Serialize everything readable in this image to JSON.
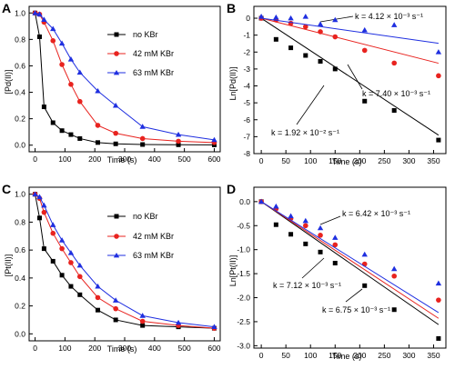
{
  "chart_data": [
    {
      "type": "line",
      "panel_label": "A",
      "xlabel": "Time (s)",
      "ylabel": "[Pd(II)]",
      "xlim": [
        -20,
        620
      ],
      "ylim": [
        -0.05,
        1.05
      ],
      "xticks": [
        0,
        100,
        200,
        300,
        400,
        500,
        600
      ],
      "yticks": [
        0.0,
        0.2,
        0.4,
        0.6,
        0.8,
        1.0
      ],
      "ytick_labels": [
        "0.0",
        "0.2",
        "0.4",
        "0.6",
        "0.8",
        "1.0"
      ],
      "legend_position": "top-right",
      "series": [
        {
          "name": "no KBr",
          "color": "#000000",
          "marker": "square",
          "x": [
            0,
            15,
            30,
            60,
            90,
            120,
            150,
            210,
            270,
            360,
            480,
            600
          ],
          "y": [
            1.0,
            0.82,
            0.29,
            0.17,
            0.11,
            0.08,
            0.05,
            0.02,
            0.01,
            0.005,
            0.003,
            0.002
          ]
        },
        {
          "name": "42 mM KBr",
          "color": "#e8231f",
          "marker": "circle",
          "x": [
            0,
            15,
            30,
            60,
            90,
            120,
            150,
            210,
            270,
            360,
            480,
            600
          ],
          "y": [
            1.0,
            0.99,
            0.93,
            0.79,
            0.61,
            0.46,
            0.33,
            0.15,
            0.09,
            0.05,
            0.03,
            0.02
          ]
        },
        {
          "name": "63 mM KBr",
          "color": "#1f2fe0",
          "marker": "triangle",
          "x": [
            0,
            15,
            30,
            60,
            90,
            120,
            150,
            210,
            270,
            360,
            480,
            600
          ],
          "y": [
            1.0,
            0.99,
            0.95,
            0.88,
            0.77,
            0.65,
            0.55,
            0.41,
            0.3,
            0.14,
            0.08,
            0.04
          ]
        }
      ]
    },
    {
      "type": "scatter",
      "panel_label": "B",
      "xlabel": "Time (s)",
      "ylabel": "Ln[Pd(II)]",
      "xlim": [
        -15,
        375
      ],
      "ylim": [
        -8,
        0.7
      ],
      "xticks": [
        0,
        50,
        100,
        150,
        200,
        250,
        300,
        350
      ],
      "yticks": [
        0,
        -1,
        -2,
        -3,
        -4,
        -5,
        -6,
        -7,
        -8
      ],
      "ytick_labels": [
        "0",
        "-1",
        "-2",
        "-3",
        "-4",
        "-5",
        "-6",
        "-7",
        "-8"
      ],
      "series": [
        {
          "name": "no KBr",
          "color": "#000000",
          "marker": "square",
          "x": [
            0,
            30,
            60,
            90,
            120,
            150,
            210,
            270,
            360
          ],
          "y": [
            0.0,
            -1.25,
            -1.75,
            -2.2,
            -2.55,
            -3.0,
            -4.9,
            -5.45,
            -7.2
          ],
          "fit": [
            0.0,
            -6.91
          ]
        },
        {
          "name": "42 mM KBr",
          "color": "#e8231f",
          "marker": "circle",
          "x": [
            0,
            30,
            60,
            90,
            120,
            150,
            210,
            270,
            360
          ],
          "y": [
            0.0,
            -0.1,
            -0.3,
            -0.5,
            -0.8,
            -1.1,
            -1.9,
            -2.65,
            -3.4
          ],
          "fit": [
            0.0,
            -2.66
          ]
        },
        {
          "name": "63 mM KBr",
          "color": "#1f2fe0",
          "marker": "triangle",
          "x": [
            0,
            30,
            60,
            90,
            120,
            150,
            210,
            270,
            360
          ],
          "y": [
            0.1,
            0.05,
            0.0,
            0.1,
            -0.35,
            -0.1,
            -0.7,
            -0.4,
            -2.0
          ],
          "fit": [
            0.0,
            -1.48
          ]
        }
      ],
      "annotations": [
        {
          "text": "k = 4.12 × 10⁻³ s⁻¹"
        },
        {
          "text": "k = 7.40 × 10⁻³ s⁻¹"
        },
        {
          "text": "k = 1.92 × 10⁻² s⁻¹"
        }
      ]
    },
    {
      "type": "line",
      "panel_label": "C",
      "xlabel": "Time (s)",
      "ylabel": "[Pt(II)]",
      "xlim": [
        -20,
        620
      ],
      "ylim": [
        -0.05,
        1.05
      ],
      "xticks": [
        0,
        100,
        200,
        300,
        400,
        500,
        600
      ],
      "yticks": [
        0.0,
        0.2,
        0.4,
        0.6,
        0.8,
        1.0
      ],
      "ytick_labels": [
        "0.0",
        "0.2",
        "0.4",
        "0.6",
        "0.8",
        "1.0"
      ],
      "legend_position": "top-right",
      "series": [
        {
          "name": "no KBr",
          "color": "#000000",
          "marker": "square",
          "x": [
            0,
            15,
            30,
            60,
            90,
            120,
            150,
            210,
            270,
            360,
            480,
            600
          ],
          "y": [
            1.0,
            0.83,
            0.61,
            0.52,
            0.42,
            0.34,
            0.28,
            0.17,
            0.1,
            0.06,
            0.05,
            0.04
          ]
        },
        {
          "name": "42 mM KBr",
          "color": "#e8231f",
          "marker": "circle",
          "x": [
            0,
            15,
            30,
            60,
            90,
            120,
            150,
            210,
            270,
            360,
            480,
            600
          ],
          "y": [
            1.0,
            0.97,
            0.87,
            0.72,
            0.61,
            0.51,
            0.41,
            0.26,
            0.18,
            0.09,
            0.06,
            0.04
          ]
        },
        {
          "name": "63 mM KBr",
          "color": "#1f2fe0",
          "marker": "triangle",
          "x": [
            0,
            15,
            30,
            60,
            90,
            120,
            150,
            210,
            270,
            360,
            480,
            600
          ],
          "y": [
            1.0,
            0.98,
            0.92,
            0.78,
            0.67,
            0.58,
            0.49,
            0.34,
            0.24,
            0.13,
            0.08,
            0.05
          ]
        }
      ]
    },
    {
      "type": "scatter",
      "panel_label": "D",
      "xlabel": "Time (s)",
      "ylabel": "Ln[Pt(II)]",
      "xlim": [
        -15,
        375
      ],
      "ylim": [
        -3.05,
        0.3
      ],
      "xticks": [
        0,
        50,
        100,
        150,
        200,
        250,
        300,
        350
      ],
      "yticks": [
        0.0,
        -0.5,
        -1.0,
        -1.5,
        -2.0,
        -2.5,
        -3.0
      ],
      "ytick_labels": [
        "0.0",
        "-0.5",
        "-1.0",
        "-1.5",
        "-2.0",
        "-2.5",
        "-3.0"
      ],
      "series": [
        {
          "name": "no KBr",
          "color": "#000000",
          "marker": "square",
          "x": [
            0,
            30,
            60,
            90,
            120,
            150,
            210,
            270,
            360
          ],
          "y": [
            0.0,
            -0.48,
            -0.68,
            -0.88,
            -1.05,
            -1.28,
            -1.75,
            -2.25,
            -2.85
          ],
          "fit": [
            0.0,
            -2.56
          ]
        },
        {
          "name": "42 mM KBr",
          "color": "#e8231f",
          "marker": "circle",
          "x": [
            0,
            30,
            60,
            90,
            120,
            150,
            210,
            270,
            360
          ],
          "y": [
            0.0,
            -0.15,
            -0.35,
            -0.5,
            -0.7,
            -0.9,
            -1.3,
            -1.55,
            -2.05
          ],
          "fit": [
            0.0,
            -2.43
          ]
        },
        {
          "name": "63 mM KBr",
          "color": "#1f2fe0",
          "marker": "triangle",
          "x": [
            0,
            30,
            60,
            90,
            120,
            150,
            210,
            270,
            360
          ],
          "y": [
            0.0,
            -0.1,
            -0.3,
            -0.4,
            -0.55,
            -0.75,
            -1.1,
            -1.4,
            -1.7
          ],
          "fit": [
            0.0,
            -2.31
          ]
        }
      ],
      "annotations": [
        {
          "text": "k = 6.42 × 10⁻³ s⁻¹"
        },
        {
          "text": "k = 7.12 × 10⁻³ s⁻¹"
        },
        {
          "text": "k = 6.75 × 10⁻³ s⁻¹"
        }
      ]
    }
  ]
}
